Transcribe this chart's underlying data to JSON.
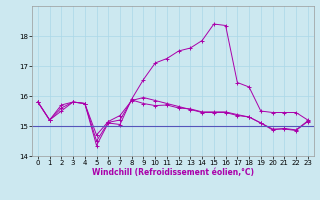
{
  "xlabel": "Windchill (Refroidissement éolien,°C)",
  "background_color": "#cce8f0",
  "line_color": "#aa00aa",
  "hline_color": "#5555bb",
  "xlim": [
    -0.5,
    23.5
  ],
  "ylim": [
    14.0,
    19.0
  ],
  "yticks": [
    14,
    15,
    16,
    17,
    18
  ],
  "xticks": [
    0,
    1,
    2,
    3,
    4,
    5,
    6,
    7,
    8,
    9,
    10,
    11,
    12,
    13,
    14,
    15,
    16,
    17,
    18,
    19,
    20,
    21,
    22,
    23
  ],
  "series1_x": [
    0,
    1,
    2,
    3,
    4,
    5,
    6,
    7,
    8,
    9,
    10,
    11,
    12,
    13,
    14,
    15,
    16,
    17,
    18,
    19,
    20,
    21,
    22,
    23
  ],
  "series1_y": [
    15.8,
    15.2,
    15.5,
    15.8,
    15.75,
    14.35,
    15.1,
    15.05,
    15.9,
    16.55,
    17.1,
    17.25,
    17.5,
    17.6,
    17.85,
    18.4,
    18.35,
    16.45,
    16.3,
    15.5,
    15.45,
    15.45,
    15.45,
    15.2
  ],
  "series2_x": [
    0,
    1,
    2,
    3,
    4,
    5,
    6,
    7,
    8,
    9,
    10,
    11,
    12,
    13,
    14,
    15,
    16,
    17,
    18,
    19,
    20,
    21,
    22,
    23
  ],
  "series2_y": [
    15.8,
    15.2,
    15.7,
    15.8,
    15.75,
    14.7,
    15.15,
    15.35,
    15.85,
    15.95,
    15.85,
    15.75,
    15.65,
    15.55,
    15.45,
    15.45,
    15.45,
    15.35,
    15.3,
    15.1,
    14.9,
    14.9,
    14.85,
    15.15
  ],
  "series3_x": [
    0,
    1,
    2,
    3,
    4,
    5,
    6,
    7,
    8,
    9,
    10,
    11,
    12,
    13,
    14,
    15,
    16,
    17,
    18,
    19,
    20,
    21,
    22,
    23
  ],
  "series3_y": [
    15.8,
    15.2,
    15.6,
    15.8,
    15.75,
    14.5,
    15.12,
    15.2,
    15.87,
    15.75,
    15.68,
    15.7,
    15.6,
    15.57,
    15.47,
    15.47,
    15.47,
    15.38,
    15.3,
    15.1,
    14.87,
    14.92,
    14.87,
    15.17
  ],
  "hline_y": 15.0,
  "xlabel_fontsize": 5.5,
  "tick_fontsize": 5,
  "linewidth": 0.7,
  "markersize": 2.5
}
